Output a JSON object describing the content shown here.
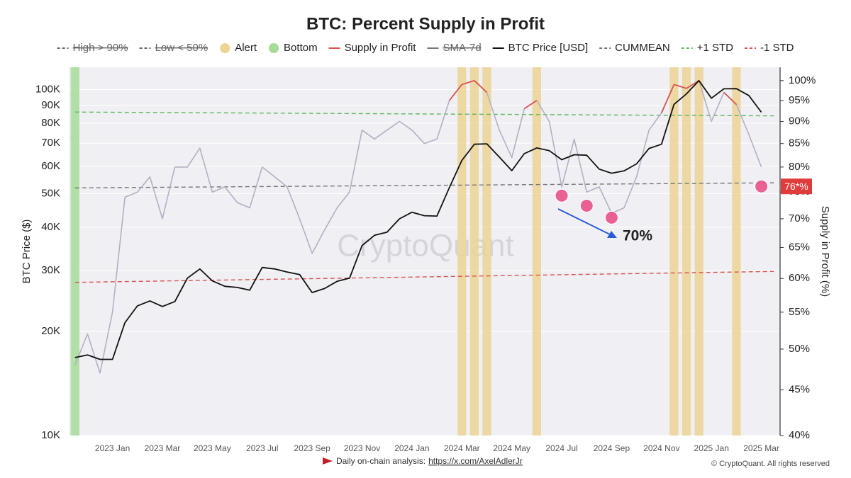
{
  "chart_data": {
    "type": "line",
    "title": "BTC: Percent Supply in Profit",
    "y_label": "BTC Price ($)",
    "y2_label": "Supply in Profit (%)",
    "log_scale": true,
    "grid": true,
    "legend_position": "top",
    "watermark": "CryptoQuant",
    "categories": [
      null,
      null,
      null,
      "2023 Jan",
      null,
      null,
      null,
      "2023 Mar",
      null,
      null,
      null,
      "2023 May",
      null,
      null,
      null,
      "2023 Jul",
      null,
      null,
      null,
      "2023 Sep",
      null,
      null,
      null,
      "2023 Nov",
      null,
      null,
      null,
      "2024 Jan",
      null,
      null,
      null,
      "2024 Mar",
      null,
      null,
      null,
      "2024 May",
      null,
      null,
      null,
      "2024 Jul",
      null,
      null,
      null,
      "2024 Sep",
      null,
      null,
      null,
      "2024 Nov",
      null,
      null,
      null,
      "2025 Jan",
      null,
      null,
      null,
      "2025 Mar",
      null
    ],
    "ylim": [
      10000,
      116000
    ],
    "yticks": [
      {
        "value": 10000,
        "label": "10K"
      },
      {
        "value": 20000,
        "label": "20K"
      },
      {
        "value": 30000,
        "label": "30K"
      },
      {
        "value": 40000,
        "label": "40K"
      },
      {
        "value": 50000,
        "label": "50K"
      },
      {
        "value": 60000,
        "label": "60K"
      },
      {
        "value": 70000,
        "label": "70K"
      },
      {
        "value": 80000,
        "label": "80K"
      },
      {
        "value": 90000,
        "label": "90K"
      },
      {
        "value": 100000,
        "label": "100K"
      }
    ],
    "y2lim": [
      40,
      103.5
    ],
    "y2ticks": [
      {
        "value": 40,
        "label": "40%"
      },
      {
        "value": 45,
        "label": "45%"
      },
      {
        "value": 50,
        "label": "50%"
      },
      {
        "value": 55,
        "label": "55%"
      },
      {
        "value": 60,
        "label": "60%"
      },
      {
        "value": 65,
        "label": "65%"
      },
      {
        "value": 70,
        "label": "70%"
      },
      {
        "value": 75,
        "label": "75%"
      },
      {
        "value": 80,
        "label": "80%"
      },
      {
        "value": 85,
        "label": "85%"
      },
      {
        "value": 90,
        "label": "90%"
      },
      {
        "value": 95,
        "label": "95%"
      },
      {
        "value": 100,
        "label": "100%"
      }
    ],
    "series": [
      {
        "name": "High > 90%",
        "color": "#666666",
        "style": "dash",
        "hidden": true
      },
      {
        "name": "Low < 50%",
        "color": "#666666",
        "style": "dash",
        "hidden": true
      },
      {
        "name": "Alert",
        "color": "#ecd494",
        "style": "band",
        "values": [
          0,
          0,
          0,
          0,
          0,
          0,
          0,
          0,
          0,
          0,
          0,
          0,
          0,
          0,
          0,
          0,
          0,
          0,
          0,
          0,
          0,
          0,
          0,
          0,
          0,
          0,
          0,
          0,
          0,
          0,
          0,
          1,
          1,
          1,
          0,
          0,
          0,
          1,
          0,
          0,
          0,
          0,
          0,
          0,
          0,
          0,
          0,
          0,
          1,
          1,
          1,
          0,
          0,
          1,
          0,
          0,
          0
        ]
      },
      {
        "name": "Bottom",
        "color": "#a6dc96",
        "style": "band",
        "values": [
          1,
          0,
          0,
          0,
          0,
          0,
          0,
          0,
          0,
          0,
          0,
          0,
          0,
          0,
          0,
          0,
          0,
          0,
          0,
          0,
          0,
          0,
          0,
          0,
          0,
          0,
          0,
          0,
          0,
          0,
          0,
          0,
          0,
          0,
          0,
          0,
          0,
          0,
          0,
          0,
          0,
          0,
          0,
          0,
          0,
          0,
          0,
          0,
          0,
          0,
          0,
          0,
          0,
          0,
          0,
          0,
          0
        ]
      },
      {
        "name": "Supply in Profit",
        "color": "#d9534f",
        "line_color": "#b3afc2",
        "style": "line",
        "axis": "y2",
        "values": [
          48,
          52,
          47,
          55,
          74,
          75,
          78,
          70,
          80,
          80,
          84,
          75,
          76,
          73,
          72,
          80,
          78,
          76,
          70,
          64,
          68,
          72,
          75,
          88,
          86,
          88,
          90,
          88,
          85,
          86,
          95,
          99,
          100,
          97,
          88,
          82,
          93,
          95,
          90,
          76,
          86,
          75,
          76,
          71,
          72,
          78,
          88,
          92,
          99,
          98,
          100,
          90,
          97,
          94,
          87,
          80,
          null
        ]
      },
      {
        "name": "SMA-7d",
        "color": "#777777",
        "style": "line",
        "hidden": true
      },
      {
        "name": "BTC Price [USD]",
        "color": "#111111",
        "style": "line",
        "values": [
          16800,
          17100,
          16600,
          16600,
          21200,
          23700,
          24500,
          23600,
          24400,
          28500,
          30300,
          28000,
          27000,
          26800,
          26300,
          30600,
          30300,
          29700,
          29200,
          25900,
          26600,
          27900,
          28500,
          35400,
          37900,
          38700,
          42300,
          44200,
          43200,
          43100,
          52100,
          62400,
          69500,
          69700,
          63800,
          58300,
          65300,
          67800,
          66600,
          62700,
          64800,
          64600,
          58900,
          57300,
          58200,
          61000,
          67600,
          69500,
          90600,
          97200,
          106100,
          94400,
          100500,
          100600,
          96100,
          86000,
          null
        ]
      },
      {
        "name": "CUMMEAN",
        "color": "#777777",
        "style": "dash",
        "axis": "y2",
        "range": [
          75.8,
          76.8
        ]
      },
      {
        "name": "+1 STD",
        "color": "#5cb85c",
        "style": "dash",
        "axis": "y2",
        "range": [
          92.2,
          91.3
        ]
      },
      {
        "name": "-1 STD",
        "color": "#d9534f",
        "style": "dash",
        "axis": "y2",
        "range": [
          59.4,
          61.1
        ]
      }
    ],
    "markers": {
      "color": "#e8508a",
      "axis": "y2",
      "values": [
        null,
        null,
        null,
        null,
        null,
        null,
        null,
        null,
        null,
        null,
        null,
        null,
        null,
        null,
        null,
        null,
        null,
        null,
        null,
        null,
        null,
        null,
        null,
        null,
        null,
        null,
        null,
        null,
        null,
        null,
        null,
        null,
        null,
        null,
        null,
        null,
        null,
        null,
        null,
        74.3,
        null,
        72.4,
        null,
        70.2,
        null,
        null,
        null,
        null,
        null,
        null,
        null,
        null,
        null,
        null,
        null,
        76.1,
        null
      ]
    },
    "annotation": "70%",
    "current_value": {
      "value": 76.1,
      "label": "76*%",
      "color": "#e03c3c"
    },
    "footer": {
      "text": "Daily on-chain analysis:",
      "link": "https://x.com/AxelAdlerJr",
      "copyright": "© CryptoQuant. All rights reserved"
    }
  }
}
